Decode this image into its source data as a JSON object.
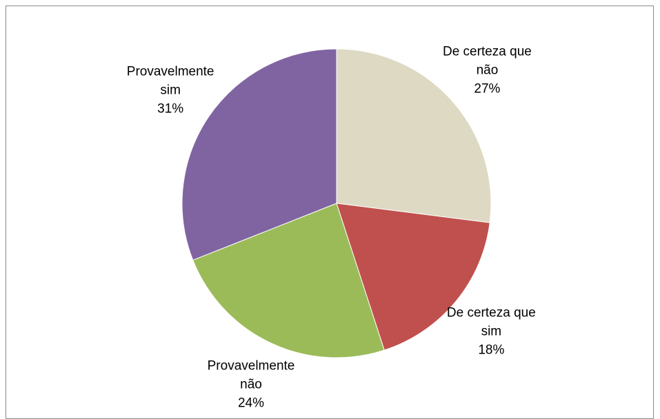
{
  "chart_data": {
    "type": "pie",
    "categories": [
      "De certeza que não",
      "De certeza que sim",
      "Provavelmente não",
      "Provavelmente sim"
    ],
    "values": [
      27,
      18,
      24,
      31
    ],
    "value_labels": [
      "27%",
      "18%",
      "24%",
      "31%"
    ],
    "colors": [
      "#ddd9c3",
      "#c0504d",
      "#9bbb59",
      "#8064a2"
    ]
  }
}
